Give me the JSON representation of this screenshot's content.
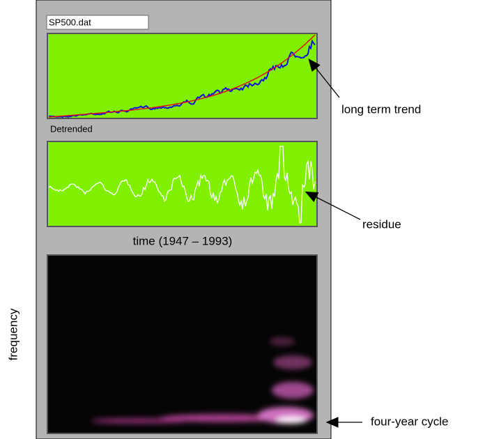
{
  "file_field": {
    "value": "SP500.dat"
  },
  "panels": {
    "detrended_label": "Detrended",
    "time_label": "time (1947 – 1993)"
  },
  "annotations": {
    "frequency": "frequency",
    "trend": "long term trend",
    "residue": "residue",
    "cycle": "four-year cycle"
  }
}
